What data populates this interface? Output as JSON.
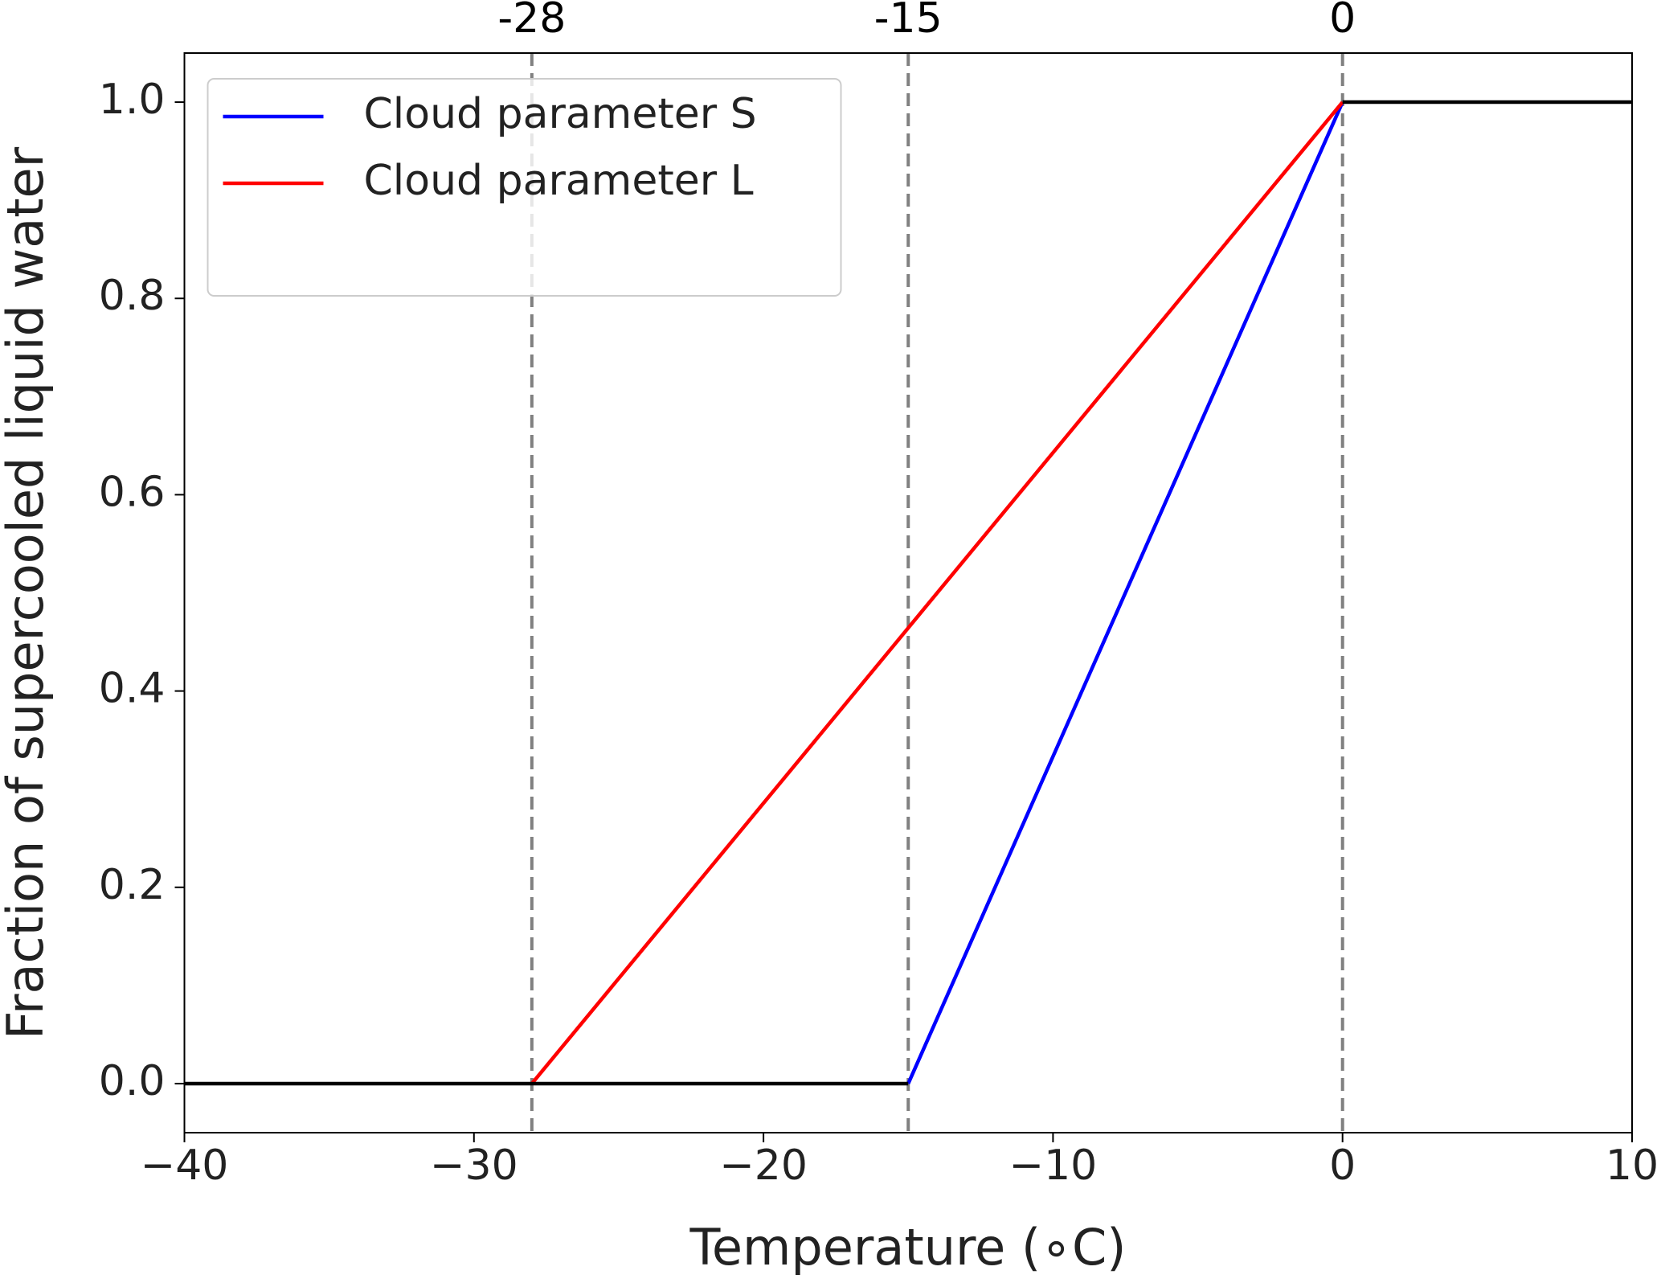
{
  "chart_data": {
    "type": "line",
    "xlabel": "Temperature (∘C)",
    "ylabel": "Fraction of supercooled liquid water",
    "xlim": [
      -40,
      10
    ],
    "ylim": [
      -0.05,
      1.05
    ],
    "xticks": [
      {
        "value": -40,
        "label": "−40"
      },
      {
        "value": -30,
        "label": "−30"
      },
      {
        "value": -20,
        "label": "−20"
      },
      {
        "value": -10,
        "label": "−10"
      },
      0,
      10
    ],
    "yticks": [
      {
        "value": 0,
        "label": "0.0"
      },
      {
        "value": 0.2,
        "label": "0.2"
      },
      {
        "value": 0.4,
        "label": "0.4"
      },
      {
        "value": 0.6,
        "label": "0.6"
      },
      {
        "value": 0.8,
        "label": "0.8"
      },
      {
        "value": 1,
        "label": "1.0"
      }
    ],
    "x2ticks": [
      -28,
      -15,
      0
    ],
    "legend": "upper left",
    "series": [
      {
        "name": "Cloud parameter S",
        "color": "#0000ff",
        "x": [
          -15,
          0
        ],
        "values": [
          0,
          1
        ]
      },
      {
        "name": "Cloud parameter L",
        "color": "#ff0000",
        "x": [
          -28,
          0
        ],
        "values": [
          0,
          1
        ]
      },
      {
        "color": "#000000",
        "x": [
          -40,
          -15
        ],
        "values": [
          0,
          0
        ]
      },
      {
        "color": "#000000",
        "x": [
          0,
          10
        ],
        "values": [
          1,
          1
        ]
      }
    ]
  }
}
